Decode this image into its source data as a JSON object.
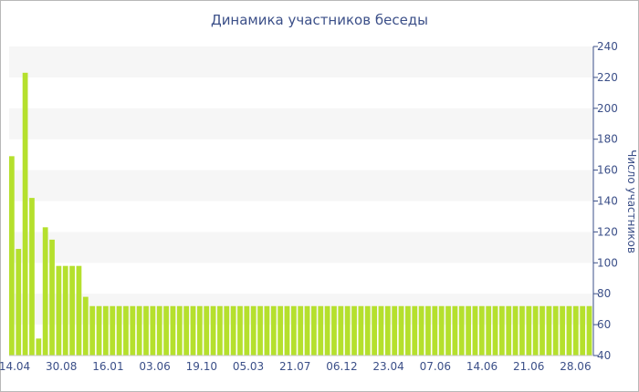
{
  "chart_data": {
    "type": "bar",
    "title": "Динамика участников беседы",
    "xlabel": "",
    "ylabel": "Число участников",
    "ylim": [
      40,
      240
    ],
    "y_ticks": [
      40,
      60,
      80,
      100,
      120,
      140,
      160,
      180,
      200,
      220,
      240
    ],
    "x_tick_labels": [
      "14.04",
      "30.08",
      "16.01",
      "03.06",
      "19.10",
      "05.03",
      "21.07",
      "06.12",
      "23.04",
      "07.06",
      "14.06",
      "21.06",
      "28.06"
    ],
    "y_axis_side": "right",
    "grid": "alternating horizontal bands",
    "bar_color": "#b5e02d",
    "values": [
      169,
      109,
      223,
      142,
      51,
      123,
      115,
      98,
      98,
      98,
      98,
      78,
      72,
      72,
      72,
      72,
      72,
      72,
      72,
      72,
      72,
      72,
      72,
      72,
      72,
      72,
      72,
      72,
      72,
      72,
      72,
      72,
      72,
      72,
      72,
      72,
      72,
      72,
      72,
      72,
      72,
      72,
      72,
      72,
      72,
      72,
      72,
      72,
      72,
      72,
      72,
      72,
      72,
      72,
      72,
      72,
      72,
      72,
      72,
      72,
      72,
      72,
      72,
      72,
      72,
      72,
      72,
      72,
      72,
      72,
      72,
      72,
      72,
      72,
      72,
      72,
      72,
      72,
      72,
      72,
      72,
      72,
      72,
      72,
      72,
      72,
      72
    ]
  }
}
